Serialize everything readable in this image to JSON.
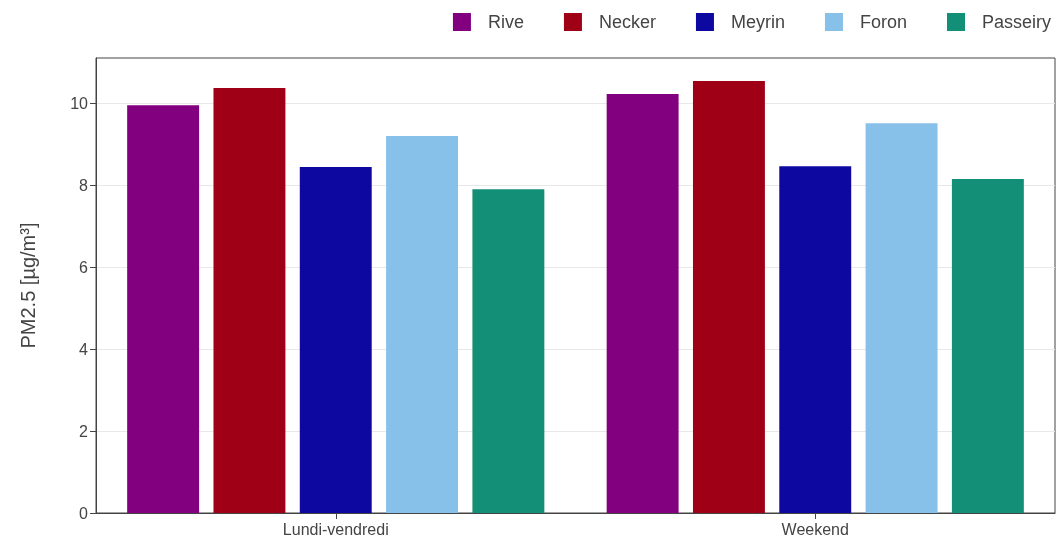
{
  "chart_data": {
    "type": "bar",
    "ylabel": "PM2.5 [µg/m³]",
    "categories": [
      "Lundi-vendredi",
      "Weekend"
    ],
    "series": [
      {
        "name": "Rive",
        "color": "#820080",
        "values": [
          9.95,
          10.22
        ]
      },
      {
        "name": "Necker",
        "color": "#a00016",
        "values": [
          10.37,
          10.54
        ]
      },
      {
        "name": "Meyrin",
        "color": "#0c08a0",
        "values": [
          8.44,
          8.46
        ]
      },
      {
        "name": "Foron",
        "color": "#87c0e8",
        "values": [
          9.2,
          9.51
        ]
      },
      {
        "name": "Passeiry",
        "color": "#138f77",
        "values": [
          7.9,
          8.15
        ]
      }
    ],
    "ylim": [
      0,
      11.1
    ],
    "yticks": [
      0,
      2,
      4,
      6,
      8,
      10
    ],
    "grid": "y",
    "legend": "top right"
  }
}
